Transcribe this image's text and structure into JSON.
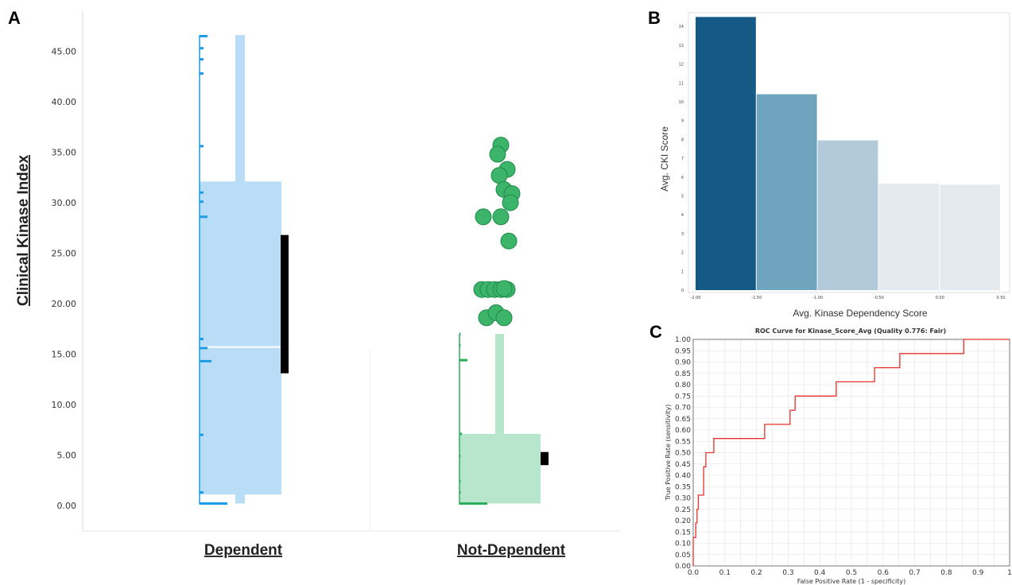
{
  "panels": {
    "a": "A",
    "b": "B",
    "c": "C"
  },
  "chart_data": [
    {
      "id": "A",
      "type": "scatter",
      "ylabel": "Clinical Kinase Index",
      "ylim": [
        -2.5,
        49
      ],
      "yticks": [
        "0.00",
        "5.00",
        "10.00",
        "15.00",
        "20.00",
        "25.00",
        "30.00",
        "35.00",
        "40.00",
        "45.00"
      ],
      "ytick_values": [
        0,
        5,
        10,
        15,
        20,
        25,
        30,
        35,
        40,
        45
      ],
      "categories": [
        "Dependent",
        "Not-Dependent"
      ],
      "colors": {
        "dependent": "#1e9be6",
        "dependent_fill": "#b9dcf7",
        "not_dependent": "#2aae5b",
        "not_dependent_fill": "#b8e6cc",
        "marker": "#000000"
      },
      "dependent": {
        "histogram_ticks": [
          {
            "y": 46.5,
            "len": 1.0
          },
          {
            "y": 45.3,
            "len": 0.5
          },
          {
            "y": 44.2,
            "len": 0.5
          },
          {
            "y": 42.8,
            "len": 0.5
          },
          {
            "y": 35.6,
            "len": 0.5
          },
          {
            "y": 31.0,
            "len": 0.5
          },
          {
            "y": 30.1,
            "len": 0.5
          },
          {
            "y": 28.6,
            "len": 1.0
          },
          {
            "y": 16.5,
            "len": 0.5
          },
          {
            "y": 15.6,
            "len": 1.0
          },
          {
            "y": 14.3,
            "len": 1.5
          },
          {
            "y": 7.0,
            "len": 0.5
          },
          {
            "y": 1.3,
            "len": 0.5
          },
          {
            "y": 0.2,
            "len": 3.5
          }
        ],
        "whisker": [
          0.2,
          46.6
        ],
        "q1": 1.1,
        "median": 15.7,
        "q3": 32.1,
        "ci": [
          13.1,
          26.8
        ]
      },
      "not_dependent": {
        "histogram_ticks": [
          {
            "y": 17.0,
            "len": 0.15
          },
          {
            "y": 15.9,
            "len": 0.15
          },
          {
            "y": 14.4,
            "len": 1.0
          },
          {
            "y": 7.1,
            "len": 0.3
          },
          {
            "y": 4.9,
            "len": 0.15
          },
          {
            "y": 2.4,
            "len": 0.15
          },
          {
            "y": 1.3,
            "len": 0.15
          },
          {
            "y": 0.2,
            "len": 3.5
          }
        ],
        "whisker": [
          0.2,
          17.0
        ],
        "q1": 0.2,
        "q3": 7.1,
        "ci": [
          4.0,
          5.3
        ],
        "outliers": [
          {
            "x": 0.0,
            "y": 35.7
          },
          {
            "x": -0.1,
            "y": 34.8
          },
          {
            "x": 0.2,
            "y": 33.3
          },
          {
            "x": -0.05,
            "y": 32.7
          },
          {
            "x": 0.1,
            "y": 31.3
          },
          {
            "x": 0.35,
            "y": 30.9
          },
          {
            "x": 0.3,
            "y": 30.0
          },
          {
            "x": -0.55,
            "y": 28.6
          },
          {
            "x": 0.0,
            "y": 28.6
          },
          {
            "x": 0.25,
            "y": 26.2
          },
          {
            "x": -0.6,
            "y": 21.4
          },
          {
            "x": -0.4,
            "y": 21.4
          },
          {
            "x": -0.2,
            "y": 21.4
          },
          {
            "x": 0.0,
            "y": 21.4
          },
          {
            "x": 0.2,
            "y": 21.4
          },
          {
            "x": 0.1,
            "y": 21.5
          },
          {
            "x": -0.45,
            "y": 18.6
          },
          {
            "x": -0.15,
            "y": 19.1
          },
          {
            "x": 0.1,
            "y": 18.6
          }
        ]
      }
    },
    {
      "id": "B",
      "type": "bar",
      "xlabel": "Avg. Kinase Dependency Score",
      "ylabel": "Avg. CKI Score",
      "xticks": [
        "-2.00",
        "-1.50",
        "-1.00",
        "-0.50",
        "0.00",
        "0.50"
      ],
      "xtick_values": [
        -2.0,
        -1.5,
        -1.0,
        -0.5,
        0.0,
        0.5
      ],
      "xlim": [
        -2.0,
        0.5
      ],
      "yticks": [
        "0",
        "1",
        "2",
        "3",
        "4",
        "5",
        "6",
        "7",
        "8",
        "9",
        "10",
        "11",
        "12",
        "13",
        "14"
      ],
      "ytick_values": [
        0,
        1,
        2,
        3,
        4,
        5,
        6,
        7,
        8,
        9,
        10,
        11,
        12,
        13,
        14
      ],
      "ylim": [
        0,
        14.6
      ],
      "bins": [
        {
          "x0": -2.0,
          "x1": -1.5,
          "value": 14.5,
          "color": "#155a87"
        },
        {
          "x0": -1.5,
          "x1": -1.0,
          "value": 10.4,
          "color": "#6fa3be"
        },
        {
          "x0": -1.0,
          "x1": -0.5,
          "value": 7.95,
          "color": "#b2cad9"
        },
        {
          "x0": -0.5,
          "x1": 0.0,
          "value": 5.65,
          "color": "#e3ebf1"
        },
        {
          "x0": 0.0,
          "x1": 0.5,
          "value": 5.6,
          "color": "#e3ebf1"
        }
      ]
    },
    {
      "id": "C",
      "type": "line",
      "title": "ROC Curve for Kinase_Score_Avg  (Quality 0.776: Fair)",
      "xlabel": "False Positive Rate (1 - specificity)",
      "ylabel": "True Positive Rate (sensitivity)",
      "xlim": [
        0,
        1
      ],
      "ylim": [
        0,
        1
      ],
      "xticks": [
        "0.0",
        "0.1",
        "0.2",
        "0.3",
        "0.4",
        "0.5",
        "0.6",
        "0.7",
        "0.8",
        "0.9",
        "1"
      ],
      "xtick_values": [
        0,
        0.1,
        0.2,
        0.3,
        0.4,
        0.5,
        0.6,
        0.7,
        0.8,
        0.9,
        1.0
      ],
      "yticks": [
        "0.00",
        "0.05",
        "0.10",
        "0.15",
        "0.20",
        "0.25",
        "0.30",
        "0.35",
        "0.40",
        "0.45",
        "0.50",
        "0.55",
        "0.60",
        "0.65",
        "0.70",
        "0.75",
        "0.80",
        "0.85",
        "0.90",
        "0.95",
        "1.00"
      ],
      "ytick_values": [
        0,
        0.05,
        0.1,
        0.15,
        0.2,
        0.25,
        0.3,
        0.35,
        0.4,
        0.45,
        0.5,
        0.55,
        0.6,
        0.65,
        0.7,
        0.75,
        0.8,
        0.85,
        0.9,
        0.95,
        1.0
      ],
      "line_color": "#e8302c",
      "grid": true,
      "points": [
        [
          0,
          0
        ],
        [
          0,
          0.125
        ],
        [
          0.008,
          0.125
        ],
        [
          0.008,
          0.19
        ],
        [
          0.012,
          0.19
        ],
        [
          0.012,
          0.25
        ],
        [
          0.016,
          0.25
        ],
        [
          0.016,
          0.3125
        ],
        [
          0.033,
          0.3125
        ],
        [
          0.033,
          0.4375
        ],
        [
          0.04,
          0.4375
        ],
        [
          0.04,
          0.5
        ],
        [
          0.065,
          0.5
        ],
        [
          0.065,
          0.5625
        ],
        [
          0.226,
          0.5625
        ],
        [
          0.226,
          0.625
        ],
        [
          0.306,
          0.625
        ],
        [
          0.306,
          0.6875
        ],
        [
          0.322,
          0.6875
        ],
        [
          0.322,
          0.75
        ],
        [
          0.452,
          0.75
        ],
        [
          0.452,
          0.8125
        ],
        [
          0.573,
          0.8125
        ],
        [
          0.573,
          0.875
        ],
        [
          0.653,
          0.875
        ],
        [
          0.653,
          0.9375
        ],
        [
          0.855,
          0.9375
        ],
        [
          0.855,
          1.0
        ],
        [
          1.0,
          1.0
        ]
      ]
    }
  ]
}
